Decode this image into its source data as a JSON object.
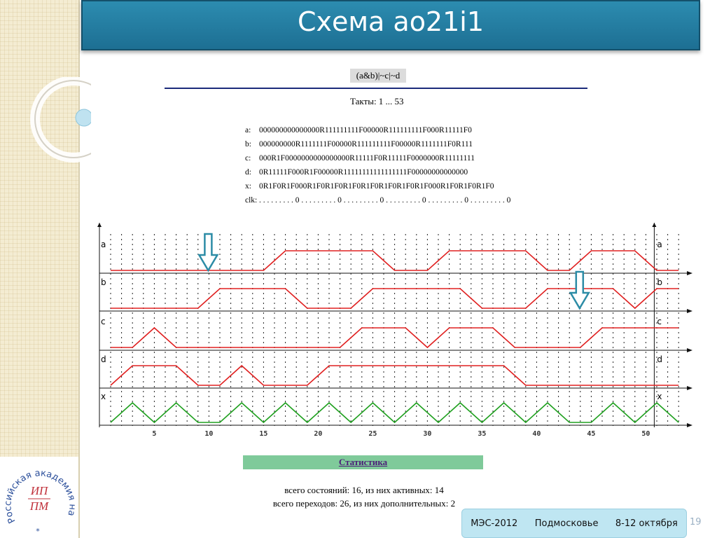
{
  "slide": {
    "title": "Схема ao21i1",
    "expression": "(a&b)|~c|~d",
    "ticks_label": "Такты: 1 ... 53",
    "sequences": [
      {
        "label": "a:",
        "value": "000000000000000R111111111F00000R111111111F000R11111F0"
      },
      {
        "label": "b:",
        "value": "000000000R1111111F00000R111111111F00000R1111111F0R111"
      },
      {
        "label": "c:",
        "value": "000R1F0000000000000000R11111F0R11111F0000000R11111111"
      },
      {
        "label": "d:",
        "value": "0R11111F000R1F00000R11111111111111111F00000000000000"
      },
      {
        "label": "x:",
        "value": "0R1F0R1F000R1F0R1F0R1F0R1F0R1F0R1F0R1F000R1F0R1F0R1F0"
      },
      {
        "label": "clk:",
        "value": ". . . . . . . . . 0 . . . . . . . . . 0 . . . . . . . . . 0 . . . . . . . . . 0 . . . . . . . . . 0 . . . . . . . . . 0"
      }
    ],
    "stats_title": "Статистика",
    "stats_line1": "всего состояний: 16, из них активных: 14",
    "stats_line2": "всего переходов: 26, из них дополнительных: 2",
    "footer": {
      "event": "МЭС-2012",
      "place": "Подмосковье",
      "dates": "8-12 октября"
    },
    "page_number": "19",
    "logo": {
      "text": "Российская академия наук",
      "initials_top": "ИП",
      "initials_bottom": "ПМ",
      "star": "*"
    }
  },
  "chart_data": {
    "type": "line",
    "xlim": [
      1,
      53
    ],
    "x_ticks": [
      5,
      10,
      15,
      20,
      25,
      30,
      35,
      40,
      45,
      50
    ],
    "grid": true,
    "series": [
      {
        "name": "a",
        "color": "#e02020",
        "values": [
          0,
          0,
          0,
          0,
          0,
          0,
          0,
          0,
          0,
          0,
          0,
          0,
          0,
          0,
          0,
          0.5,
          1,
          1,
          1,
          1,
          1,
          1,
          1,
          1,
          1,
          0.5,
          0,
          0,
          0,
          0,
          0.5,
          1,
          1,
          1,
          1,
          1,
          1,
          1,
          1,
          0.5,
          0,
          0,
          0,
          0.5,
          1,
          1,
          1,
          1,
          1,
          0.5,
          0,
          0,
          0
        ]
      },
      {
        "name": "b",
        "color": "#e02020",
        "values": [
          0,
          0,
          0,
          0,
          0,
          0,
          0,
          0,
          0,
          0.5,
          1,
          1,
          1,
          1,
          1,
          1,
          1,
          0.5,
          0,
          0,
          0,
          0,
          0,
          0.5,
          1,
          1,
          1,
          1,
          1,
          1,
          1,
          1,
          1,
          0.5,
          0,
          0,
          0,
          0,
          0,
          0.5,
          1,
          1,
          1,
          1,
          1,
          1,
          1,
          0.5,
          0,
          0.5,
          1,
          1,
          1
        ]
      },
      {
        "name": "c",
        "color": "#e02020",
        "values": [
          0,
          0,
          0,
          0.5,
          1,
          0.5,
          0,
          0,
          0,
          0,
          0,
          0,
          0,
          0,
          0,
          0,
          0,
          0,
          0,
          0,
          0,
          0,
          0.5,
          1,
          1,
          1,
          1,
          1,
          0.5,
          0,
          0.5,
          1,
          1,
          1,
          1,
          1,
          0.5,
          0,
          0,
          0,
          0,
          0,
          0,
          0,
          0.5,
          1,
          1,
          1,
          1,
          1,
          1,
          1,
          1
        ]
      },
      {
        "name": "d",
        "color": "#e02020",
        "values": [
          0,
          0.5,
          1,
          1,
          1,
          1,
          1,
          0.5,
          0,
          0,
          0,
          0.5,
          1,
          0.5,
          0,
          0,
          0,
          0,
          0,
          0.5,
          1,
          1,
          1,
          1,
          1,
          1,
          1,
          1,
          1,
          1,
          1,
          1,
          1,
          1,
          1,
          1,
          1,
          0.5,
          0,
          0,
          0,
          0,
          0,
          0,
          0,
          0,
          0,
          0,
          0,
          0,
          0,
          0,
          0
        ]
      },
      {
        "name": "x",
        "color": "#20a020",
        "values": [
          0,
          0.5,
          1,
          0.5,
          0,
          0.5,
          1,
          0.5,
          0,
          0,
          0,
          0.5,
          1,
          0.5,
          0,
          0.5,
          1,
          0.5,
          0,
          0.5,
          1,
          0.5,
          0,
          0.5,
          1,
          0.5,
          0,
          0.5,
          1,
          0.5,
          0,
          0.5,
          1,
          0.5,
          0,
          0.5,
          1,
          0.5,
          0,
          0.5,
          1,
          0.5,
          0,
          0,
          0,
          0.5,
          1,
          0.5,
          0,
          0.5,
          1,
          0.5,
          0
        ]
      }
    ],
    "annotations": [
      {
        "type": "arrow-down",
        "near_x": 10,
        "signal": "a"
      },
      {
        "type": "arrow-down",
        "near_x": 44,
        "signal": "b"
      }
    ]
  }
}
